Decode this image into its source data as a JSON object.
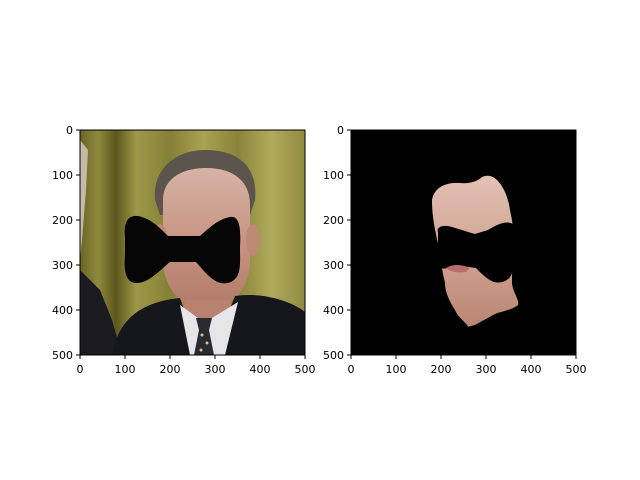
{
  "chart_data": [
    {
      "type": "image",
      "content": "portrait of man in dark suit, white shirt and patterned tie against yellow curtain background, face covered by black bow-tie-shaped mask",
      "xlim": [
        0,
        500
      ],
      "ylim": [
        500,
        0
      ],
      "xticks": [
        0,
        100,
        200,
        300,
        400,
        500
      ],
      "yticks": [
        0,
        100,
        200,
        300,
        400,
        500
      ],
      "xtick_labels": [
        "0",
        "100",
        "200",
        "300",
        "400",
        "500"
      ],
      "ytick_labels": [
        "0",
        "100",
        "200",
        "300",
        "400",
        "500"
      ],
      "colors": {
        "curtain": "#8f8a3e",
        "curtain_dark": "#5d561e",
        "suit": "#15161b",
        "shirt": "#e7e7ea",
        "skin": "#c79c87",
        "hair": "#59534b",
        "mask": "#060505"
      }
    },
    {
      "type": "image",
      "content": "segmented face region on black background with black bow-tie-shaped mask covering the center of the face",
      "xlim": [
        0,
        500
      ],
      "ylim": [
        500,
        0
      ],
      "xticks": [
        0,
        100,
        200,
        300,
        400,
        500
      ],
      "yticks": [
        0,
        100,
        200,
        300,
        400,
        500
      ],
      "xtick_labels": [
        "0",
        "100",
        "200",
        "300",
        "400",
        "500"
      ],
      "ytick_labels": [
        "0",
        "100",
        "200",
        "300",
        "400",
        "500"
      ],
      "colors": {
        "background": "#000000",
        "skin": "#d1a595",
        "mask": "#000000"
      }
    }
  ]
}
